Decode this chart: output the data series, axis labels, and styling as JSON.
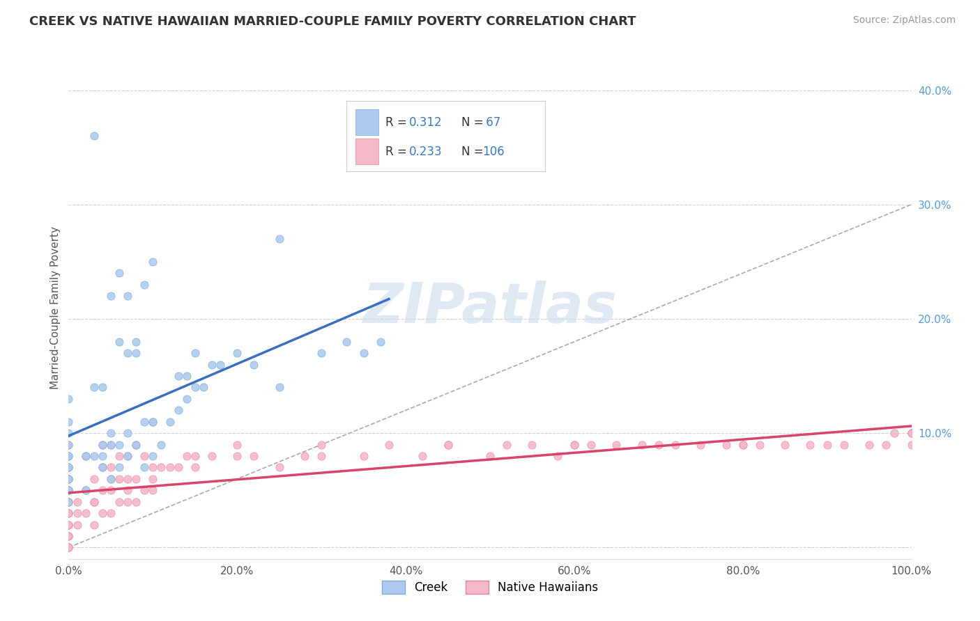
{
  "title": "CREEK VS NATIVE HAWAIIAN MARRIED-COUPLE FAMILY POVERTY CORRELATION CHART",
  "source": "Source: ZipAtlas.com",
  "ylabel": "Married-Couple Family Poverty",
  "creek_color": "#aecbef",
  "creek_edge_color": "#7aabd4",
  "native_color": "#f5b8c8",
  "native_edge_color": "#e08898",
  "creek_line_color": "#3a6fc0",
  "native_line_color": "#d94468",
  "dash_line_color": "#aaaaaa",
  "creek_R": 0.312,
  "creek_N": 67,
  "native_R": 0.233,
  "native_N": 106,
  "xlim": [
    0.0,
    1.0
  ],
  "ylim": [
    -0.01,
    0.43
  ],
  "yticks": [
    0.0,
    0.1,
    0.2,
    0.3,
    0.4
  ],
  "ytick_labels": [
    "",
    "10.0%",
    "20.0%",
    "30.0%",
    "40.0%"
  ],
  "xticks": [
    0.0,
    0.2,
    0.4,
    0.6,
    0.8,
    1.0
  ],
  "xtick_labels": [
    "0.0%",
    "20.0%",
    "40.0%",
    "60.0%",
    "80.0%",
    "100.0%"
  ],
  "background_color": "#ffffff",
  "grid_color": "#cccccc",
  "title_color": "#333333",
  "axis_label_color": "#555555",
  "tick_color_y": "#5b9bd5",
  "tick_color_x": "#555555",
  "legend_label_creek": "Creek",
  "legend_label_native": "Native Hawaiians",
  "watermark": "ZIPatlas",
  "stat_color": "#3b78c3",
  "marker_size": 65,
  "creek_line_start_x": 0.0,
  "creek_line_end_x": 0.38,
  "native_line_start_x": 0.0,
  "native_line_end_x": 1.0,
  "dash_line_start_x": 0.0,
  "dash_line_end_x": 1.0,
  "dash_line_start_y": 0.0,
  "dash_line_end_y": 0.3
}
